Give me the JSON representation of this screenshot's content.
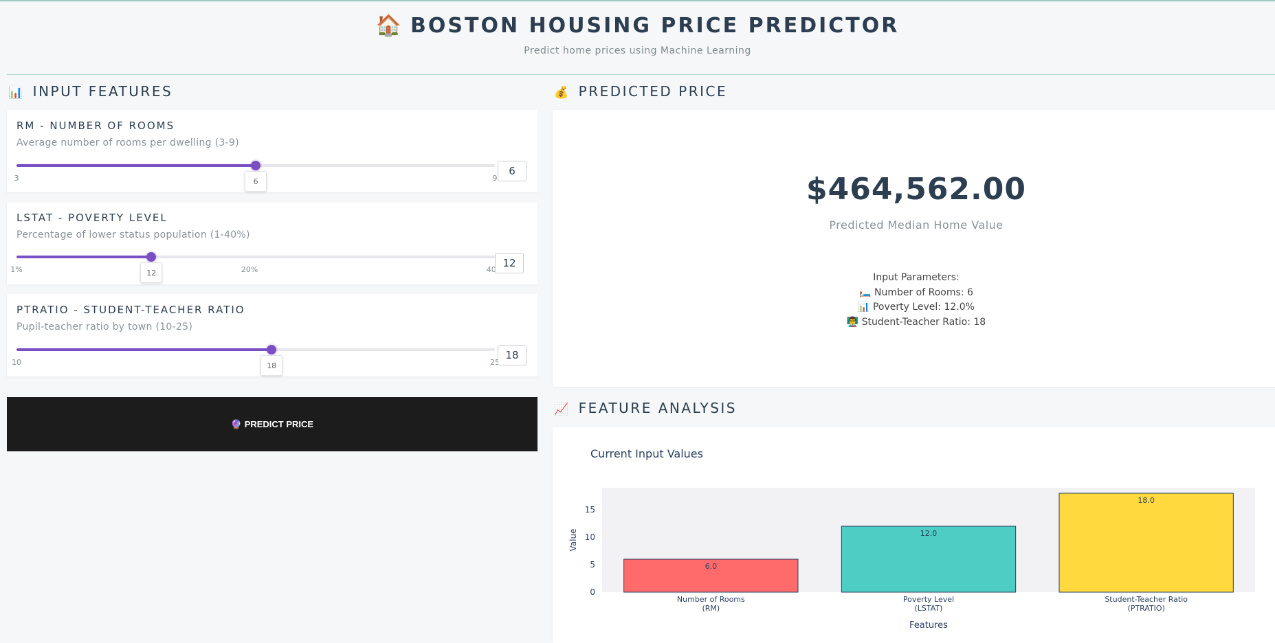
{
  "header": {
    "title_emoji": "🏠",
    "title": "BOSTON HOUSING PRICE PREDICTOR",
    "subtitle": "Predict home prices using Machine Learning"
  },
  "input_section": {
    "emoji": "📊",
    "title": "INPUT FEATURES",
    "features": [
      {
        "title": "RM - NUMBER OF ROOMS",
        "description": "Average number of rooms per dwelling (3-9)",
        "min": 3,
        "max": 9,
        "value": 6,
        "ticks": [
          {
            "value": 3,
            "label": "3"
          },
          {
            "value": 9,
            "label": "9"
          }
        ],
        "tooltip": "6",
        "input_value": "6"
      },
      {
        "title": "LSTAT - POVERTY LEVEL",
        "description": "Percentage of lower status population (1-40%)",
        "min": 1,
        "max": 40,
        "value": 12,
        "ticks": [
          {
            "value": 1,
            "label": "1%"
          },
          {
            "value": 20,
            "label": "20%"
          },
          {
            "value": 40,
            "label": "40%"
          }
        ],
        "tooltip": "12",
        "input_value": "12"
      },
      {
        "title": "PTRATIO - STUDENT-TEACHER RATIO",
        "description": "Pupil-teacher ratio by town (10-25)",
        "min": 10,
        "max": 25,
        "value": 18,
        "ticks": [
          {
            "value": 10,
            "label": "10"
          },
          {
            "value": 25,
            "label": "25"
          }
        ],
        "tooltip": "18",
        "input_value": "18"
      }
    ],
    "predict_button": "🔮 PREDICT PRICE"
  },
  "prediction_section": {
    "emoji": "💰",
    "title": "PREDICTED PRICE",
    "price": "$464,562.00",
    "price_label": "Predicted Median Home Value",
    "params_title": "Input Parameters:",
    "params": [
      "🛏️ Number of Rooms: 6",
      "📊 Poverty Level: 12.0%",
      "👨‍🏫 Student-Teacher Ratio: 18"
    ]
  },
  "analysis_section": {
    "emoji": "📈",
    "title": "FEATURE ANALYSIS"
  },
  "colors": {
    "accent": "#7b4fc4",
    "button_bg": "#1c1c1c",
    "bar_rm": "#ff6b6b",
    "bar_lstat": "#4ecdc4",
    "bar_ptratio": "#ffd93d"
  },
  "chart_data": {
    "type": "bar",
    "title": "Current Input Values",
    "categories": [
      [
        "Number of Rooms",
        "(RM)"
      ],
      [
        "Poverty Level",
        "(LSTAT)"
      ],
      [
        "Student-Teacher Ratio",
        "(PTRATIO)"
      ]
    ],
    "values": [
      6,
      12,
      18
    ],
    "data_labels": [
      "6.0",
      "12.0",
      "18.0"
    ],
    "bar_colors": [
      "#ff6b6b",
      "#4ecdc4",
      "#ffd93d"
    ],
    "xlabel": "Features",
    "ylabel": "Value",
    "ylim": [
      0,
      19
    ],
    "yticks": [
      0,
      5,
      10,
      15
    ],
    "grid": false,
    "legend": "none"
  }
}
